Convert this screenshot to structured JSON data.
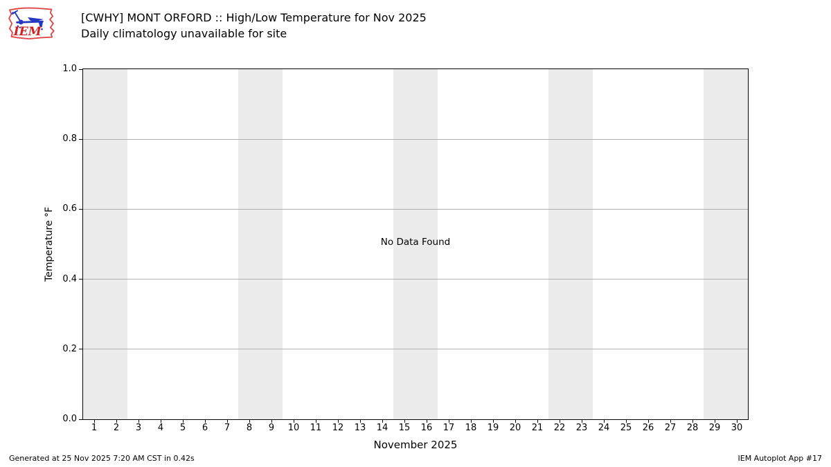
{
  "logo": {
    "text": "IEM",
    "outline_color": "#e04343",
    "glyph_color": "#2438c0",
    "text_color": "#cc2222"
  },
  "chart_data": {
    "type": "line",
    "title": "[CWHY] MONT ORFORD :: High/Low Temperature for Nov 2025",
    "subtitle": "Daily climatology unavailable for site",
    "xlabel": "November 2025",
    "ylabel": "Temperature °F",
    "no_data_message": "No Data Found",
    "series": [],
    "x": [],
    "xlim": [
      0.5,
      30.5
    ],
    "ylim": [
      0.0,
      1.0
    ],
    "x_ticks": [
      1,
      2,
      3,
      4,
      5,
      6,
      7,
      8,
      9,
      10,
      11,
      12,
      13,
      14,
      15,
      16,
      17,
      18,
      19,
      20,
      21,
      22,
      23,
      24,
      25,
      26,
      27,
      28,
      29,
      30
    ],
    "y_ticks": [
      0.0,
      0.2,
      0.4,
      0.6,
      0.8,
      1.0
    ],
    "y_tick_labels": [
      "0.0",
      "0.2",
      "0.4",
      "0.6",
      "0.8",
      "1.0"
    ],
    "grid": "horizontal-only",
    "grid_color": "#b0b0b0",
    "weekend_bands": [
      [
        1,
        2
      ],
      [
        8,
        9
      ],
      [
        15,
        16
      ],
      [
        22,
        23
      ],
      [
        29,
        30
      ]
    ],
    "band_color": "#ececec",
    "legend": "none"
  },
  "footer": {
    "generated": "Generated at 25 Nov 2025 7:20 AM CST in 0.42s",
    "app": "IEM Autoplot App #17"
  }
}
